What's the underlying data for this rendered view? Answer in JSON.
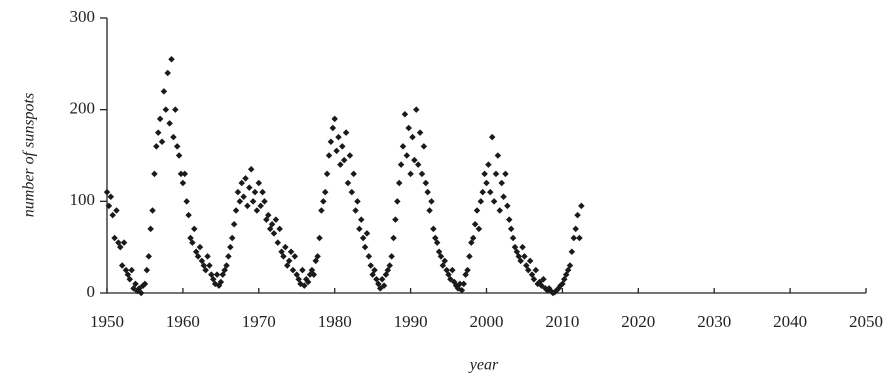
{
  "chart_data": {
    "type": "scatter",
    "xlabel": "year",
    "ylabel": "number of sunspots",
    "color": "#1a1a1a",
    "xlim": [
      1950,
      2050
    ],
    "xticks": [
      1950,
      1960,
      1970,
      1980,
      1990,
      2000,
      2010,
      2020,
      2030,
      2040,
      2050
    ],
    "ylim": [
      0,
      300
    ],
    "yticks": [
      0,
      100,
      200,
      300
    ],
    "x": [
      1950,
      1950.25,
      1950.5,
      1950.75,
      1951,
      1951.25,
      1951.5,
      1951.75,
      1952,
      1952.25,
      1952.5,
      1952.75,
      1953,
      1953.25,
      1953.5,
      1953.75,
      1954,
      1954.25,
      1954.5,
      1954.75,
      1955,
      1955.25,
      1955.5,
      1955.75,
      1956,
      1956.25,
      1956.5,
      1956.75,
      1957,
      1957.25,
      1957.5,
      1957.75,
      1958,
      1958.25,
      1958.5,
      1958.75,
      1959,
      1959.25,
      1959.5,
      1959.75,
      1960,
      1960.25,
      1960.5,
      1960.75,
      1961,
      1961.25,
      1961.5,
      1961.75,
      1962,
      1962.25,
      1962.5,
      1962.75,
      1963,
      1963.25,
      1963.5,
      1963.75,
      1964,
      1964.25,
      1964.5,
      1964.75,
      1965,
      1965.25,
      1965.5,
      1965.75,
      1966,
      1966.25,
      1966.5,
      1966.75,
      1967,
      1967.25,
      1967.5,
      1967.75,
      1968,
      1968.25,
      1968.5,
      1968.75,
      1969,
      1969.25,
      1969.5,
      1969.75,
      1970,
      1970.25,
      1970.5,
      1970.75,
      1971,
      1971.25,
      1971.5,
      1971.75,
      1972,
      1972.25,
      1972.5,
      1972.75,
      1973,
      1973.25,
      1973.5,
      1973.75,
      1974,
      1974.25,
      1974.5,
      1974.75,
      1975,
      1975.25,
      1975.5,
      1975.75,
      1976,
      1976.25,
      1976.5,
      1976.75,
      1977,
      1977.25,
      1977.5,
      1977.75,
      1978,
      1978.25,
      1978.5,
      1978.75,
      1979,
      1979.25,
      1979.5,
      1979.75,
      1980,
      1980.25,
      1980.5,
      1980.75,
      1981,
      1981.25,
      1981.5,
      1981.75,
      1982,
      1982.25,
      1982.5,
      1982.75,
      1983,
      1983.25,
      1983.5,
      1983.75,
      1984,
      1984.25,
      1984.5,
      1984.75,
      1985,
      1985.25,
      1985.5,
      1985.75,
      1986,
      1986.25,
      1986.5,
      1986.75,
      1987,
      1987.25,
      1987.5,
      1987.75,
      1988,
      1988.25,
      1988.5,
      1988.75,
      1989,
      1989.25,
      1989.5,
      1989.75,
      1990,
      1990.25,
      1990.5,
      1990.75,
      1991,
      1991.25,
      1991.5,
      1991.75,
      1992,
      1992.25,
      1992.5,
      1992.75,
      1993,
      1993.25,
      1993.5,
      1993.75,
      1994,
      1994.25,
      1994.5,
      1994.75,
      1995,
      1995.25,
      1995.5,
      1995.75,
      1996,
      1996.25,
      1996.5,
      1996.75,
      1997,
      1997.25,
      1997.5,
      1997.75,
      1998,
      1998.25,
      1998.5,
      1998.75,
      1999,
      1999.25,
      1999.5,
      1999.75,
      2000,
      2000.25,
      2000.5,
      2000.75,
      2001,
      2001.25,
      2001.5,
      2001.75,
      2002,
      2002.25,
      2002.5,
      2002.75,
      2003,
      2003.25,
      2003.5,
      2003.75,
      2004,
      2004.25,
      2004.5,
      2004.75,
      2005,
      2005.25,
      2005.5,
      2005.75,
      2006,
      2006.25,
      2006.5,
      2006.75,
      2007,
      2007.25,
      2007.5,
      2007.75,
      2008,
      2008.25,
      2008.5,
      2008.75,
      2009,
      2009.25,
      2009.5,
      2009.75,
      2010,
      2010.25,
      2010.5,
      2010.75,
      2011,
      2011.25,
      2011.5,
      2011.75,
      2012,
      2012.25,
      2012.5
    ],
    "values": [
      110,
      95,
      105,
      85,
      60,
      90,
      55,
      50,
      30,
      55,
      25,
      20,
      15,
      25,
      5,
      10,
      2,
      5,
      0,
      8,
      10,
      25,
      40,
      70,
      90,
      130,
      160,
      175,
      190,
      165,
      220,
      200,
      240,
      185,
      255,
      170,
      200,
      160,
      150,
      130,
      120,
      130,
      100,
      85,
      60,
      55,
      70,
      45,
      40,
      50,
      35,
      30,
      25,
      40,
      30,
      20,
      15,
      10,
      20,
      8,
      12,
      20,
      25,
      30,
      40,
      50,
      60,
      75,
      90,
      110,
      100,
      120,
      105,
      125,
      95,
      115,
      135,
      100,
      110,
      90,
      120,
      95,
      110,
      100,
      80,
      85,
      70,
      75,
      65,
      80,
      55,
      70,
      45,
      40,
      50,
      30,
      35,
      45,
      25,
      40,
      20,
      15,
      10,
      25,
      8,
      15,
      12,
      20,
      25,
      20,
      35,
      40,
      60,
      90,
      100,
      110,
      130,
      150,
      165,
      180,
      190,
      155,
      170,
      140,
      160,
      145,
      175,
      120,
      150,
      110,
      130,
      90,
      100,
      70,
      80,
      60,
      50,
      65,
      40,
      30,
      20,
      25,
      15,
      10,
      5,
      15,
      8,
      20,
      25,
      30,
      40,
      60,
      80,
      100,
      120,
      140,
      160,
      195,
      150,
      180,
      130,
      170,
      145,
      200,
      140,
      175,
      130,
      160,
      120,
      110,
      90,
      100,
      70,
      60,
      55,
      45,
      40,
      30,
      35,
      25,
      20,
      15,
      25,
      12,
      8,
      5,
      10,
      3,
      10,
      20,
      25,
      40,
      55,
      60,
      75,
      90,
      70,
      100,
      110,
      130,
      120,
      140,
      110,
      170,
      100,
      130,
      150,
      90,
      120,
      105,
      130,
      95,
      80,
      70,
      60,
      50,
      45,
      40,
      35,
      50,
      40,
      30,
      25,
      35,
      20,
      15,
      25,
      10,
      12,
      8,
      15,
      5,
      3,
      5,
      2,
      0,
      1,
      3,
      5,
      8,
      10,
      15,
      20,
      25,
      30,
      45,
      60,
      70,
      85,
      60,
      95
    ]
  }
}
